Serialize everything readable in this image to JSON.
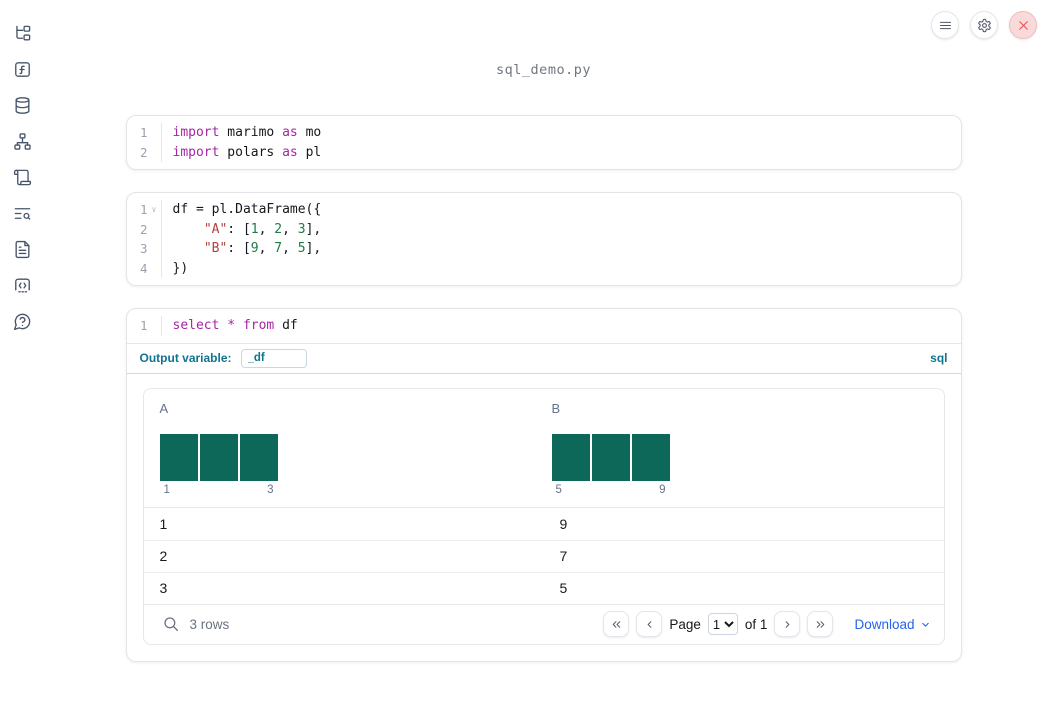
{
  "window": {
    "title": "sql_demo.py"
  },
  "topbar": {
    "buttons": [
      "menu",
      "settings",
      "shutdown"
    ]
  },
  "sidebar": {
    "items": [
      "file-explorer",
      "functions",
      "data-sources",
      "dependency-graph",
      "logs",
      "search-logs",
      "documentation",
      "snippets",
      "help"
    ]
  },
  "cells": [
    {
      "type": "python",
      "lines": [
        {
          "num": "1",
          "tokens": [
            {
              "t": "kw",
              "v": "import"
            },
            {
              "t": "txt",
              "v": " marimo "
            },
            {
              "t": "kw",
              "v": "as"
            },
            {
              "t": "txt",
              "v": " mo"
            }
          ]
        },
        {
          "num": "2",
          "tokens": [
            {
              "t": "kw",
              "v": "import"
            },
            {
              "t": "txt",
              "v": " polars "
            },
            {
              "t": "kw",
              "v": "as"
            },
            {
              "t": "txt",
              "v": " pl"
            }
          ]
        }
      ]
    },
    {
      "type": "python",
      "lines": [
        {
          "num": "1",
          "fold": true,
          "tokens": [
            {
              "t": "txt",
              "v": "df = pl.DataFrame({"
            }
          ]
        },
        {
          "num": "2",
          "tokens": [
            {
              "t": "txt",
              "v": "    "
            },
            {
              "t": "str",
              "v": "\"A\""
            },
            {
              "t": "txt",
              "v": ": ["
            },
            {
              "t": "num",
              "v": "1"
            },
            {
              "t": "txt",
              "v": ", "
            },
            {
              "t": "num",
              "v": "2"
            },
            {
              "t": "txt",
              "v": ", "
            },
            {
              "t": "num",
              "v": "3"
            },
            {
              "t": "txt",
              "v": "],"
            }
          ]
        },
        {
          "num": "3",
          "tokens": [
            {
              "t": "txt",
              "v": "    "
            },
            {
              "t": "str",
              "v": "\"B\""
            },
            {
              "t": "txt",
              "v": ": ["
            },
            {
              "t": "num",
              "v": "9"
            },
            {
              "t": "txt",
              "v": ", "
            },
            {
              "t": "num",
              "v": "7"
            },
            {
              "t": "txt",
              "v": ", "
            },
            {
              "t": "num",
              "v": "5"
            },
            {
              "t": "txt",
              "v": "],"
            }
          ]
        },
        {
          "num": "4",
          "tokens": [
            {
              "t": "txt",
              "v": "})"
            }
          ]
        }
      ]
    },
    {
      "type": "sql",
      "lines": [
        {
          "num": "1",
          "tokens": [
            {
              "t": "kw",
              "v": "select"
            },
            {
              "t": "txt",
              "v": " "
            },
            {
              "t": "kw",
              "v": "*"
            },
            {
              "t": "txt",
              "v": " "
            },
            {
              "t": "kw",
              "v": "from"
            },
            {
              "t": "txt",
              "v": " df"
            }
          ]
        }
      ]
    }
  ],
  "sql_cell": {
    "output_variable_label": "Output variable:",
    "output_variable_value": "_df",
    "language_badge": "sql"
  },
  "table": {
    "columns": [
      {
        "name": "A",
        "hist": {
          "bars": 3,
          "tick_start": "1",
          "tick_end": "3"
        }
      },
      {
        "name": "B",
        "hist": {
          "bars": 3,
          "tick_start": "5",
          "tick_end": "9"
        }
      }
    ],
    "rows": [
      [
        "1",
        "9"
      ],
      [
        "2",
        "7"
      ],
      [
        "3",
        "5"
      ]
    ],
    "footer": {
      "row_count": "3 rows",
      "page_label": "Page",
      "page_value": "1",
      "page_of": "of 1",
      "download_label": "Download"
    }
  },
  "colors": {
    "histogram_bar": "#0e685a",
    "keyword": "#a626a4",
    "string": "#b0413e",
    "number": "#1e7a46",
    "accent_teal": "#0e7490",
    "link_blue": "#2563eb"
  }
}
